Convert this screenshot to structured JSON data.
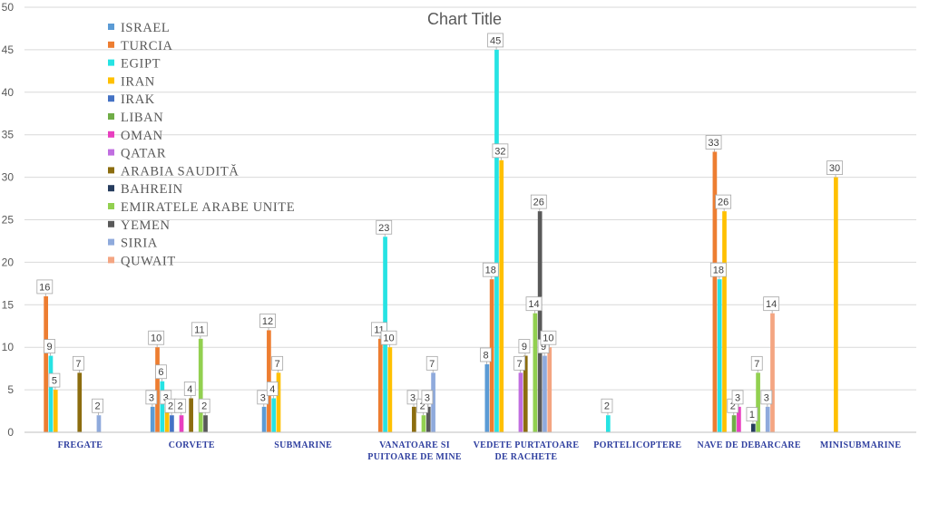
{
  "chart_data": {
    "type": "bar",
    "title": "Chart Title",
    "ylim": [
      0,
      50
    ],
    "yticks": [
      0,
      5,
      10,
      15,
      20,
      25,
      30,
      35,
      40,
      45,
      50
    ],
    "grid": true,
    "legend_position": "top-left",
    "categories": [
      [
        "FREGATE"
      ],
      [
        "CORVETE"
      ],
      [
        "SUBMARINE"
      ],
      [
        "VANATOARE  SI",
        "PUITOARE  DE MINE"
      ],
      [
        "VEDETE PURTATOARE",
        "DE RACHETE"
      ],
      [
        "PORTELICOPTERE"
      ],
      [
        "NAVE DE DEBARCARE"
      ],
      [
        "MINISUBMARINE"
      ]
    ],
    "series": [
      {
        "name": "ISRAEL",
        "color": "#5b9bd5",
        "values": [
          null,
          3,
          3,
          null,
          8,
          null,
          null,
          null
        ]
      },
      {
        "name": "TURCIA",
        "color": "#ed7d31",
        "values": [
          16,
          10,
          12,
          11,
          18,
          null,
          33,
          null
        ]
      },
      {
        "name": "EGIPT",
        "color": "#26e3e3",
        "values": [
          9,
          6,
          4,
          23,
          45,
          2,
          18,
          null
        ]
      },
      {
        "name": "IRAN",
        "color": "#ffc000",
        "values": [
          5,
          3,
          7,
          10,
          32,
          null,
          26,
          30
        ]
      },
      {
        "name": "IRAK",
        "color": "#4472c4",
        "values": [
          null,
          2,
          null,
          null,
          null,
          null,
          null,
          null
        ]
      },
      {
        "name": "LIBAN",
        "color": "#70ad47",
        "values": [
          null,
          null,
          null,
          null,
          null,
          null,
          2,
          null
        ]
      },
      {
        "name": "OMAN",
        "color": "#e83fbf",
        "values": [
          null,
          2,
          null,
          null,
          null,
          null,
          3,
          null
        ]
      },
      {
        "name": "QATAR",
        "color": "#c06ee0",
        "values": [
          null,
          null,
          null,
          null,
          7,
          null,
          null,
          null
        ]
      },
      {
        "name": "ARABIA SAUDITĂ",
        "color": "#8c6d0f",
        "values": [
          7,
          4,
          null,
          3,
          9,
          null,
          null,
          null
        ]
      },
      {
        "name": "BAHREIN",
        "color": "#263c5e",
        "values": [
          null,
          null,
          null,
          null,
          null,
          null,
          1,
          null
        ]
      },
      {
        "name": "EMIRATELE ARABE UNITE",
        "color": "#92d050",
        "values": [
          null,
          11,
          null,
          2,
          14,
          null,
          7,
          null
        ]
      },
      {
        "name": "YEMEN",
        "color": "#595959",
        "values": [
          null,
          2,
          null,
          3,
          26,
          null,
          null,
          null
        ]
      },
      {
        "name": "SIRIA",
        "color": "#8faadc",
        "values": [
          2,
          null,
          null,
          7,
          9,
          null,
          3,
          null
        ]
      },
      {
        "name": "QUWAIT",
        "color": "#f4a582",
        "values": [
          null,
          null,
          null,
          null,
          10,
          null,
          14,
          null
        ]
      }
    ]
  }
}
